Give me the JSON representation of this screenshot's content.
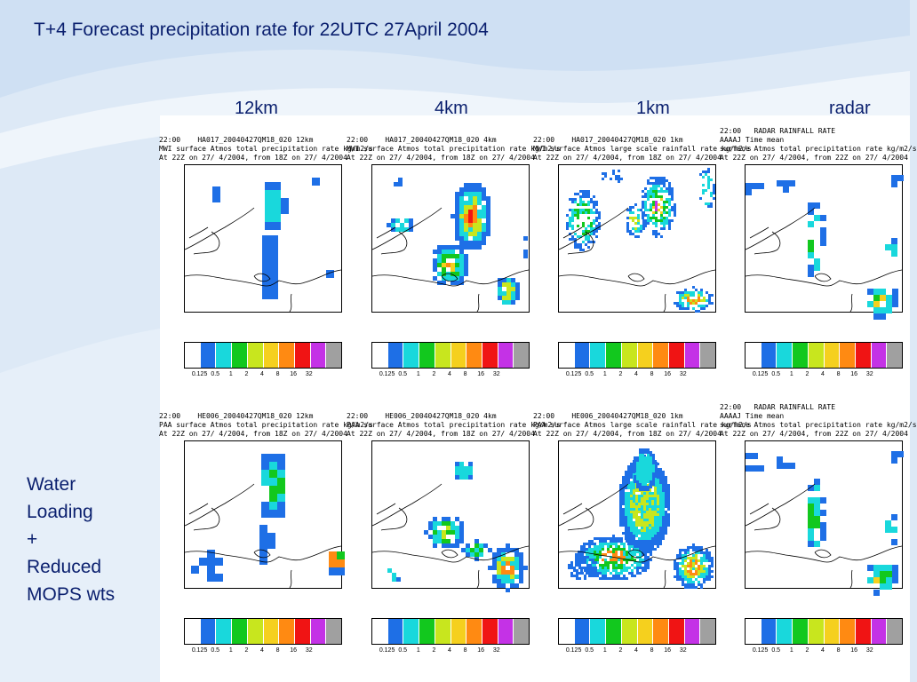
{
  "slide": {
    "title": "T+4 Forecast precipitation rate for 22UTC 27April 2004",
    "columns": [
      "12km",
      "4km",
      "1km",
      "radar"
    ],
    "side_label": [
      "Water",
      "Loading",
      "+",
      "Reduced",
      "MOPS wts"
    ]
  },
  "colors": {
    "title_text": "#0a1f6e",
    "scale": [
      "#ffffff",
      "#1e6fe6",
      "#19d8dc",
      "#12c81e",
      "#c8e61e",
      "#f5d01e",
      "#ff8a12",
      "#f01414",
      "#c432e6",
      "#a0a0a0"
    ]
  },
  "scale_ticks": [
    "0.125",
    "0.5",
    "1",
    "2",
    "4",
    "8",
    "16",
    "32"
  ],
  "panels": [
    {
      "caption": [
        "22:00    HA017_20040427QM18_020 12km",
        "MWI surface Atmos total precipitation rate kg/m2/s",
        "At 22Z on 27/ 4/2004, from 18Z on 27/ 4/2004"
      ],
      "pattern": "r1_12km"
    },
    {
      "caption": [
        "22:00    HA017_20040427QM18_020 4km",
        "MWI surface Atmos total precipitation rate kg/m2/s",
        "At 22Z on 27/ 4/2004, from 18Z on 27/ 4/2004"
      ],
      "pattern": "r1_4km"
    },
    {
      "caption": [
        "22:00    HA017_20040427QM18_020 1km",
        "MWI surface Atmos large scale rainfall rate kg/m2/s",
        "At 22Z on 27/ 4/2004, from 18Z on 27/ 4/2004"
      ],
      "pattern": "r1_1km"
    },
    {
      "caption": [
        "22:00   RADAR RAINFALL RATE",
        "AAAAJ Time mean",
        "surface Atmos total precipitation rate kg/m2/s",
        "At 22Z on 27/ 4/2004, from 22Z on 27/ 4/2004"
      ],
      "pattern": "radar"
    },
    {
      "caption": [
        "22:00    HE006_20040427QM18_020 12km",
        "PAA surface Atmos total precipitation rate kg/m2/s",
        "At 22Z on 27/ 4/2004, from 18Z on 27/ 4/2004"
      ],
      "pattern": "r2_12km"
    },
    {
      "caption": [
        "22:00    HE006_20040427QM18_020 4km",
        "PAA surface Atmos total precipitation rate kg/m2/s",
        "At 22Z on 27/ 4/2004, from 18Z on 27/ 4/2004"
      ],
      "pattern": "r2_4km"
    },
    {
      "caption": [
        "22:00    HE006_20040427QM18_020 1km",
        "PAA surface Atmos large scale rainfall rate kg/m2/s",
        "At 22Z on 27/ 4/2004, from 18Z on 27/ 4/2004"
      ],
      "pattern": "r2_1km"
    },
    {
      "caption": [
        "22:00   RADAR RAINFALL RATE",
        "AAAAJ Time mean",
        "surface Atmos total precipitation rate kg/m2/s",
        "At 22Z on 27/ 4/2004, from 22Z on 27/ 4/2004"
      ],
      "pattern": "radar"
    }
  ]
}
